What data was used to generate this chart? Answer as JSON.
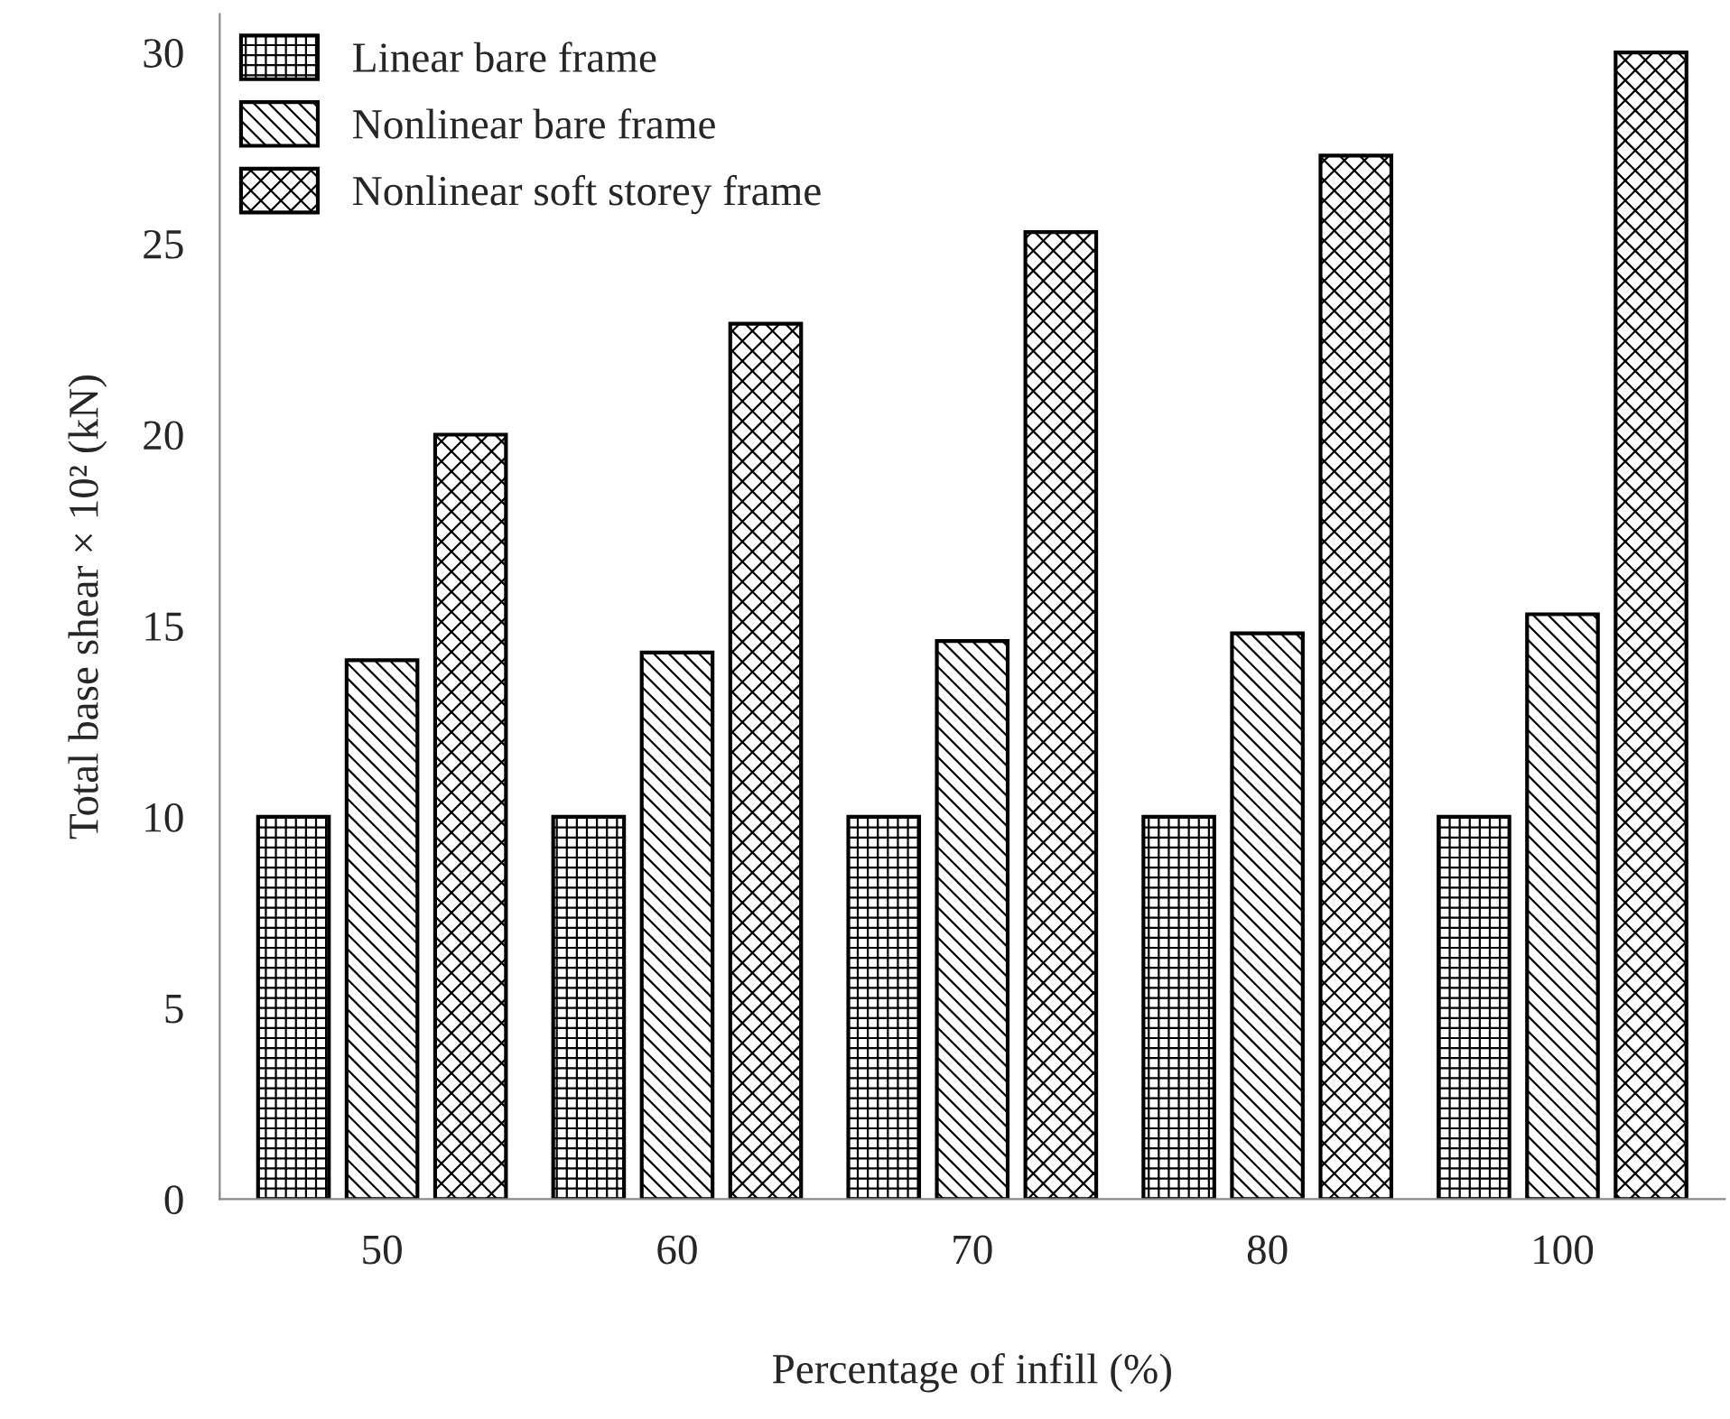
{
  "chart_data": {
    "type": "bar",
    "xlabel": "Percentage of infill (%)",
    "ylabel": "Total base shear × 10² (kN)",
    "categories": [
      "50",
      "60",
      "70",
      "80",
      "100"
    ],
    "series": [
      {
        "name": "Linear bare frame",
        "color": "#000000",
        "values": [
          10,
          10,
          10,
          10,
          10
        ]
      },
      {
        "name": "Nonlinear bare frame",
        "color": "#000000",
        "values": [
          14.1,
          14.3,
          14.6,
          14.8,
          15.3
        ]
      },
      {
        "name": "Nonlinear soft storey frame",
        "color": "#000000",
        "values": [
          20.0,
          22.9,
          25.3,
          27.3,
          30.0
        ]
      }
    ],
    "ylim": [
      0,
      31
    ],
    "yticks": [
      0,
      5,
      10,
      15,
      20,
      25,
      30
    ],
    "grid": false,
    "legend": "top left"
  }
}
